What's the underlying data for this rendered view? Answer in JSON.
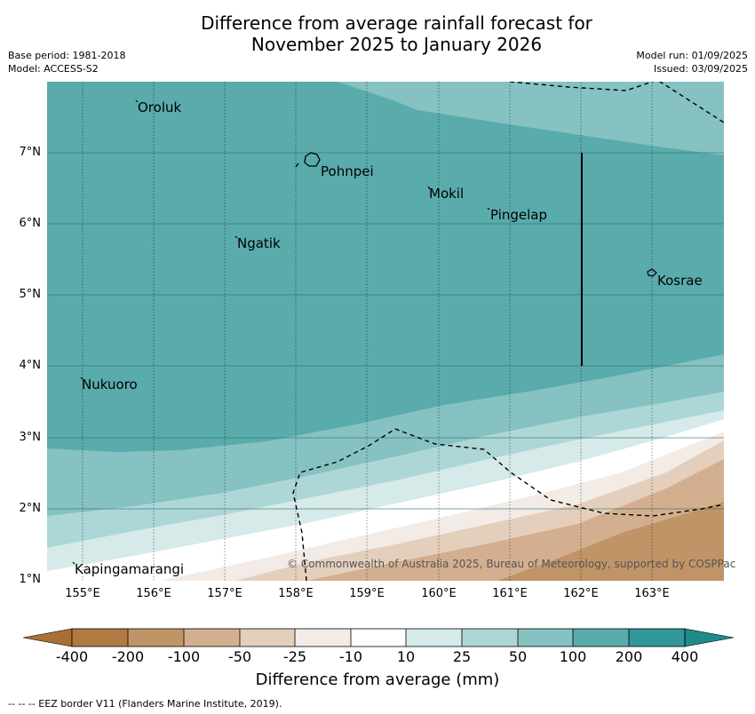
{
  "title_line1": "Difference from average rainfall forecast for",
  "title_line2": "November 2025 to January 2026",
  "base_period": "Base period: 1981-2018",
  "model": "Model: ACCESS-S2",
  "model_run": "Model run: 01/09/2025",
  "issued": "Issued: 03/09/2025",
  "map": {
    "lat_labels": [
      "7°N",
      "6°N",
      "5°N",
      "4°N",
      "3°N",
      "2°N",
      "1°N"
    ],
    "lon_labels": [
      "155°E",
      "156°E",
      "157°E",
      "158°E",
      "159°E",
      "160°E",
      "161°E",
      "162°E",
      "163°E"
    ],
    "places": [
      "Oroluk",
      "Pohnpei",
      "Mokil",
      "Pingelap",
      "Ngatik",
      "Kosrae",
      "Nukuoro",
      "Kapingamarangi"
    ],
    "copyright": "© Commonwealth of Australia 2025, Bureau of Meteorology, supported by COSPPac"
  },
  "legend": {
    "title": "Difference from average (mm)",
    "ticks": [
      "-400",
      "-200",
      "-100",
      "-50",
      "-25",
      "-10",
      "10",
      "25",
      "50",
      "100",
      "200",
      "400"
    ],
    "colors": [
      "#a77136",
      "#b17a42",
      "#c19468",
      "#d3af8f",
      "#e4cfbc",
      "#f2ebe6",
      "#ffffff",
      "#d6eae9",
      "#add7d7",
      "#85c2c1",
      "#5aabac",
      "#31979a",
      "#1f8a8b"
    ]
  },
  "footnote": "-- -- -- EEZ border V11 (Flanders Marine Institute, 2019)."
}
